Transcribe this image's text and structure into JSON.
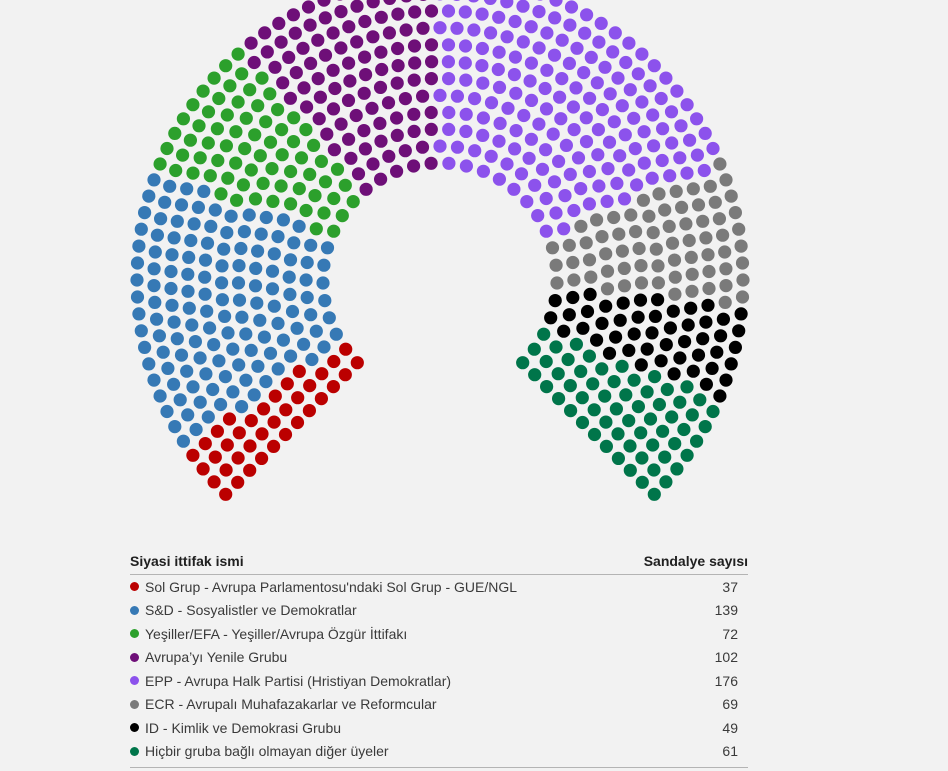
{
  "chart_data": {
    "type": "parliament",
    "table_header": {
      "name_label": "Siyasi ittifak ismi",
      "seats_label": "Sandalye sayısı"
    },
    "groups": [
      {
        "name": "Sol Grup - Avrupa Parlamentosu'ndaki Sol Grup - GUE/NGL",
        "seats": 37,
        "color": "#bb0000"
      },
      {
        "name": "S&D - Sosyalistler ve Demokratlar",
        "seats": 139,
        "color": "#3679b5"
      },
      {
        "name": "Yeşiller/EFA - Yeşiller/Avrupa Özgür İttifakı",
        "seats": 72,
        "color": "#2ca02c"
      },
      {
        "name": "Avrupa’yı Yenile Grubu",
        "seats": 102,
        "color": "#6e0f78"
      },
      {
        "name": "EPP - Avrupa Halk Partisi (Hristiyan Demokratlar)",
        "seats": 176,
        "color": "#8c52ec"
      },
      {
        "name": "ECR - Avrupalı Muhafazakarlar ve Reformcular",
        "seats": 69,
        "color": "#7a7a7a"
      },
      {
        "name": "ID - Kimlik ve Demokrasi Grubu",
        "seats": 49,
        "color": "#000000"
      },
      {
        "name": "Hiçbir gruba bağlı olmayan diğer üyeler",
        "seats": 61,
        "color": "#00754a"
      }
    ],
    "total_seats": 705,
    "arc_span_degrees": 270,
    "arc_opening": "bottom",
    "legend_position": "below"
  }
}
